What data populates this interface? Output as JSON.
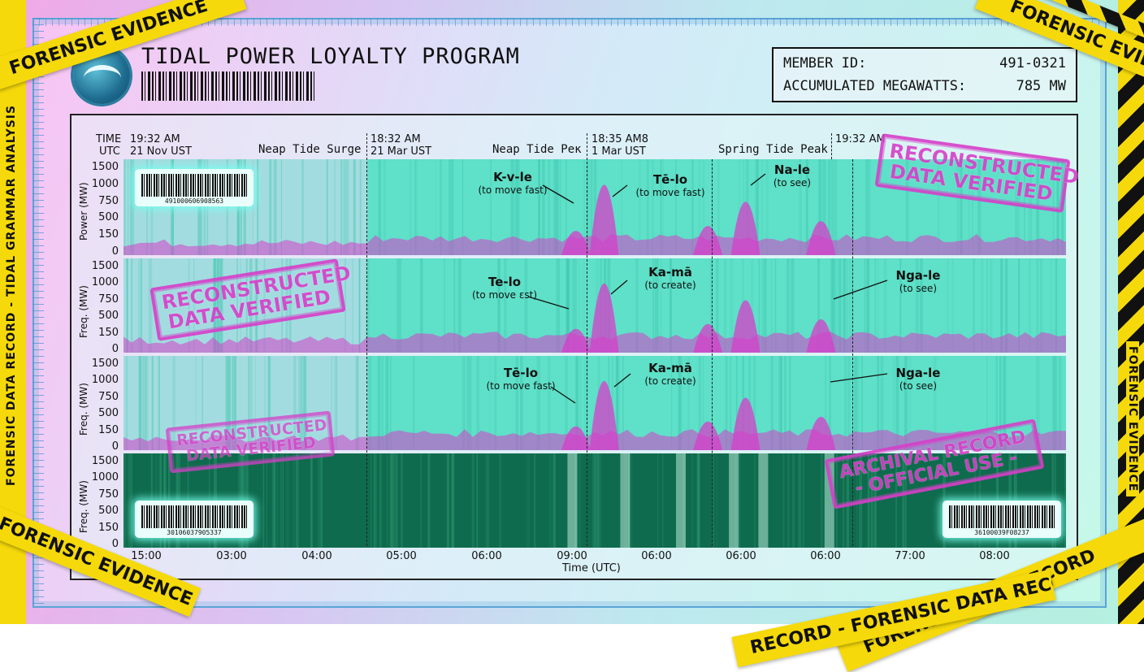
{
  "header": {
    "title": "TIDAL POWER LOYALTY PROGRAM",
    "member_id_label": "MEMBER ID:",
    "member_id_value": "491-0321",
    "megawatts_label": "ACCUMULATED MEGAWATTS:",
    "megawatts_value": "785 MW"
  },
  "time_header": {
    "time_label": "TIME",
    "utc_label": "UTC",
    "markers": [
      {
        "time": "19:32 AM",
        "date": "21 Nov UST"
      },
      {
        "time": "18:32 AM",
        "date": "21 Mar UST"
      },
      {
        "time": "18:35 AM8",
        "date": "1 Mar UST"
      },
      {
        "time": "19:32 AM",
        "date": ""
      }
    ],
    "tide_labels": [
      "Neap Tide Surge",
      "Neap Tide Peĸ",
      "Spring Tide Peak"
    ]
  },
  "annotations": [
    {
      "word": "K-v-le",
      "gloss": "(to move fast)"
    },
    {
      "word": "Tē-lo",
      "gloss": "(to move fast)"
    },
    {
      "word": "Na-le",
      "gloss": "(to see)"
    },
    {
      "word": "Te-lo",
      "gloss": "(to move ɛst)"
    },
    {
      "word": "Ka-mā",
      "gloss": "(to create)"
    },
    {
      "word": "Nga-le",
      "gloss": "(to see)"
    },
    {
      "word": "Tē-lo",
      "gloss": "(to move fast)"
    },
    {
      "word": "Ka-mā",
      "gloss": "(to create)"
    },
    {
      "word": "Nga-le",
      "gloss": "(to see)"
    }
  ],
  "stamps": {
    "reconstructed_line1": "RECONSTRUCTED",
    "reconstructed_line2": "DATA VERIFIED",
    "archival_line1": "ARCHIVAL RECORD",
    "archival_line2": "- OFFICIAL USE -"
  },
  "barcodes": {
    "panel1": "491000606908563",
    "panel4_left": "30106037905337",
    "panel4_right": "36100039F08237"
  },
  "tape": {
    "forensic_evidence": "FORENSIC EVIDENCE",
    "forensic_data_record": "FORENSIC DATA RECORD",
    "left_side": "FORENSIC DATA RECORD - TIDAL GRAMMAR ANALYSIS",
    "right_side": "FORENSIC EVIDENCE",
    "corner_record": "RECORD - FORENSIC DATA RECO",
    "right_mid": "FORENSIC EVIDENCE"
  },
  "colors": {
    "teal": "#5fe0c8",
    "magenta": "#d63fc9",
    "dark_green": "#0f6b4d",
    "tape_yellow": "#f5d90a"
  },
  "chart_data": {
    "type": "heatmap",
    "xlabel": "Time (UTC)",
    "x_ticks": [
      "15:00",
      "03:00",
      "04:00",
      "05:00",
      "06:00",
      "09:00",
      "06:00",
      "06:00",
      "06:00",
      "77:00",
      "08:00"
    ],
    "y_ticks": [
      1500,
      1000,
      750,
      500,
      150,
      0
    ],
    "ylim": [
      0,
      1500
    ],
    "panels": [
      {
        "ylabel": "Power (MW)",
        "style": "light"
      },
      {
        "ylabel": "Freq. (MW)",
        "style": "light"
      },
      {
        "ylabel": "Freq. (MW)",
        "style": "light"
      },
      {
        "ylabel": "Freq. (MW)",
        "style": "dark"
      }
    ],
    "peaks": [
      {
        "x": 0.48,
        "value": 500
      },
      {
        "x": 0.51,
        "value": 1450
      },
      {
        "x": 0.62,
        "value": 600
      },
      {
        "x": 0.66,
        "value": 1100
      },
      {
        "x": 0.74,
        "value": 700
      }
    ]
  }
}
